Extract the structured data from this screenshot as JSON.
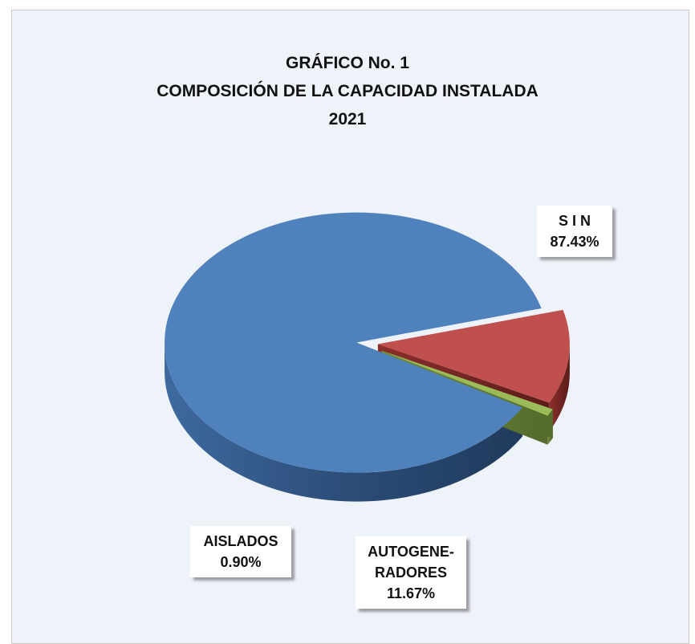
{
  "colors": {
    "background": "#eef2f9",
    "sin": "#4f81bd",
    "autogeneradores": "#c0504d",
    "aislados": "#9bbb59"
  },
  "chart_data": {
    "type": "pie",
    "title": [
      "GRÁFICO No. 1",
      "COMPOSICIÓN DE LA CAPACIDAD INSTALADA",
      "2021"
    ],
    "slices": [
      {
        "label": "S I N",
        "value": 87.43,
        "value_label": "87.43%",
        "color": "#4f81bd"
      },
      {
        "label": "AUTOGENE-RADORES",
        "value": 11.67,
        "value_label": "11.67%",
        "color": "#c0504d"
      },
      {
        "label": "AISLADOS",
        "value": 0.9,
        "value_label": "0.90%",
        "color": "#9bbb59"
      }
    ],
    "style": "3d-exploded"
  },
  "labels": {
    "sin_line1": "S I N",
    "sin_line2": "87.43%",
    "auto_line1": "AUTOGENE-",
    "auto_line2": "RADORES",
    "auto_line3": "11.67%",
    "ais_line1": "AISLADOS",
    "ais_line2": "0.90%"
  }
}
